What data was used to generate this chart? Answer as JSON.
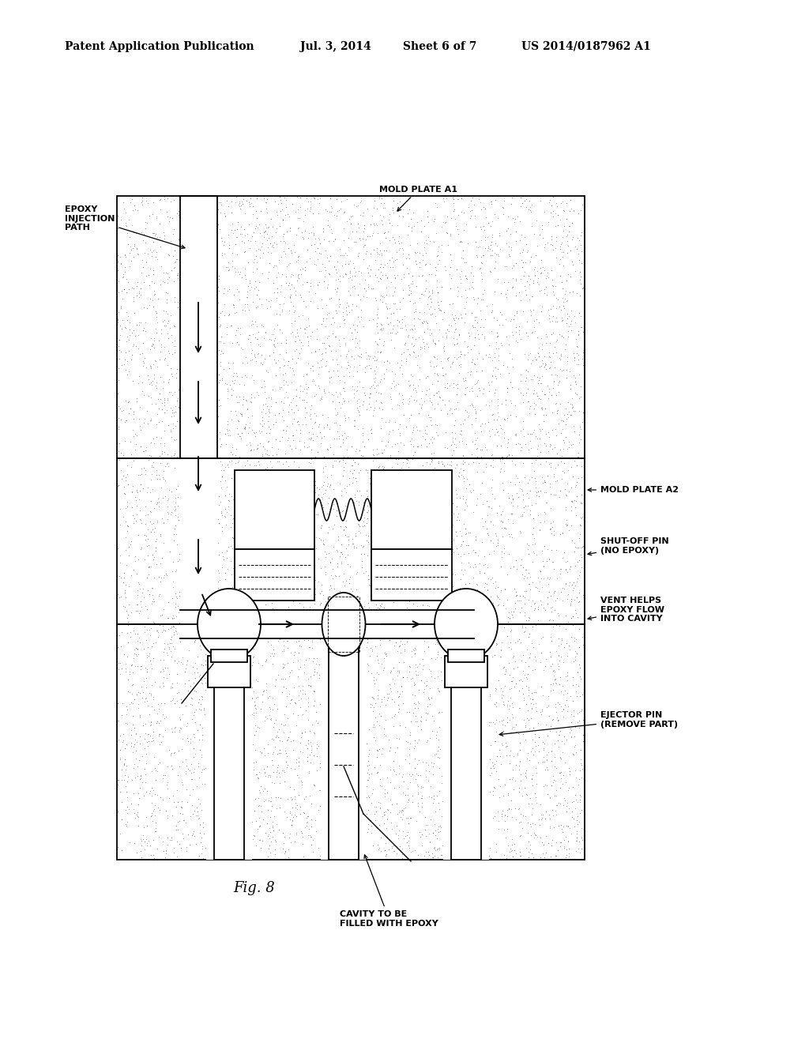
{
  "bg_color": "#ffffff",
  "header_text": "Patent Application Publication",
  "header_date": "Jul. 3, 2014",
  "header_sheet": "Sheet 6 of 7",
  "header_patent": "US 2014/0187962 A1",
  "fig_label": "Fig. 8",
  "labels": {
    "epoxy_injection": "EPOXY\nINJECTION\nPATH",
    "mold_plate_a1": "MOLD PLATE A1",
    "mold_plate_a2": "MOLD PLATE A2",
    "shut_off_pin": "SHUT-OFF PIN\n(NO EPOXY)",
    "vent_helps": "VENT HELPS\nEPOXY FLOW\nINTO CAVITY",
    "ejector_pin": "EJECTOR PIN\n(REMOVE PART)",
    "cavity": "CAVITY TO BE\nFILLED WITH EPOXY"
  },
  "line_color": "#000000",
  "font_size_header": 10,
  "font_size_label": 8,
  "font_size_fig": 13
}
